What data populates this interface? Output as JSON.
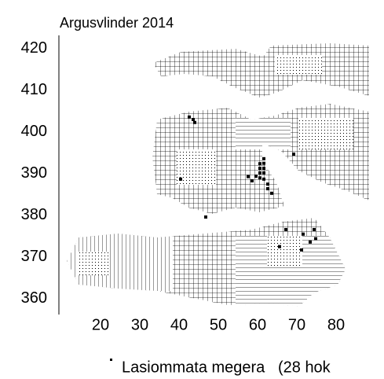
{
  "chart_data": {
    "type": "scatter",
    "title": "Argusvlinder 2014",
    "xlim": [
      9.4,
      88.4
    ],
    "xticks": [
      20,
      30,
      40,
      50,
      60,
      70,
      80
    ],
    "ylim": [
      356.2,
      423.2
    ],
    "yticks": [
      360,
      370,
      380,
      390,
      400,
      410,
      420
    ],
    "series": [
      {
        "name": "Lasiommata megera   (28 hok",
        "color": "#000000",
        "x": [
          42.6,
          43.6,
          44.0,
          40.4,
          61.6,
          61.6,
          60.6,
          61.6,
          60.6,
          61.6,
          59.6,
          60.6,
          61.6,
          62.6,
          58.6,
          62.6,
          63.6,
          69.2,
          46.8,
          65.6,
          67.2,
          71.6,
          74.4,
          73.4,
          71.2,
          74.8,
          60.6,
          57.6
        ],
        "values": [
          403.6,
          403.0,
          402.3,
          388.7,
          393.6,
          392.5,
          391.3,
          391.3,
          390.2,
          390.2,
          389.4,
          389.0,
          388.7,
          387.5,
          388.3,
          386.4,
          385.3,
          394.7,
          379.6,
          372.5,
          376.6,
          375.5,
          376.6,
          373.6,
          371.7,
          374.4,
          392.4,
          389.3
        ]
      }
    ]
  }
}
